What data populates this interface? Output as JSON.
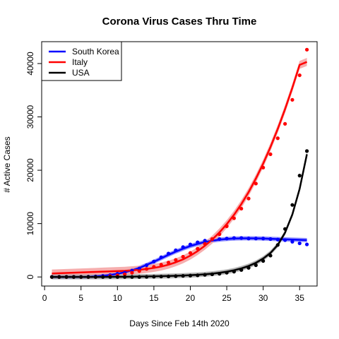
{
  "chart_data": {
    "type": "line",
    "title": "Corona Virus Cases Thru Time",
    "xlabel": "Days Since Feb 14th 2020",
    "ylabel": "# Active Cases",
    "xlim": [
      -0.4,
      37.4
    ],
    "ylim": [
      -1700,
      44100
    ],
    "x_ticks": [
      0,
      5,
      10,
      15,
      20,
      25,
      30,
      35
    ],
    "y_ticks": [
      0,
      10000,
      20000,
      30000,
      40000
    ],
    "x_tick_labels": [
      "0",
      "5",
      "10",
      "15",
      "20",
      "25",
      "30",
      "35"
    ],
    "y_tick_labels": [
      "0",
      "10000",
      "20000",
      "30000",
      "40000"
    ],
    "grid": false,
    "legend_position": "top-left",
    "series": [
      {
        "name": "South Korea",
        "color": "#0000ff",
        "band_color": "#7f7fff",
        "x": [
          1,
          2,
          3,
          4,
          5,
          6,
          7,
          8,
          9,
          10,
          11,
          12,
          13,
          14,
          15,
          16,
          17,
          18,
          19,
          20,
          21,
          22,
          23,
          24,
          25,
          26,
          27,
          28,
          29,
          30,
          31,
          32,
          33,
          34,
          35,
          36
        ],
        "values": [
          20,
          20,
          20,
          20,
          30,
          50,
          100,
          200,
          350,
          600,
          800,
          1200,
          1600,
          2200,
          2900,
          3700,
          4400,
          5000,
          5600,
          6100,
          6500,
          6800,
          7000,
          7100,
          7200,
          7300,
          7300,
          7200,
          7200,
          7200,
          7100,
          7000,
          6900,
          6600,
          6300,
          6100
        ],
        "fit": [
          0,
          0,
          0,
          0,
          0,
          0,
          120,
          220,
          380,
          600,
          880,
          1250,
          1700,
          2250,
          2850,
          3500,
          4150,
          4750,
          5300,
          5800,
          6200,
          6550,
          6800,
          7000,
          7120,
          7200,
          7240,
          7250,
          7230,
          7200,
          7150,
          7100,
          7050,
          7000,
          6950,
          6900
        ],
        "band": 400
      },
      {
        "name": "Italy",
        "color": "#ff0000",
        "band_color": "#f4a0a0",
        "x": [
          1,
          2,
          3,
          4,
          5,
          6,
          7,
          8,
          9,
          10,
          11,
          12,
          13,
          14,
          15,
          16,
          17,
          18,
          19,
          20,
          21,
          22,
          23,
          24,
          25,
          26,
          27,
          28,
          29,
          30,
          31,
          32,
          33,
          34,
          35,
          36
        ],
        "values": [
          0,
          0,
          0,
          0,
          0,
          0,
          0,
          20,
          150,
          300,
          500,
          800,
          1100,
          1500,
          1900,
          2300,
          2700,
          3200,
          3800,
          4500,
          5300,
          6200,
          7100,
          8000,
          9500,
          11000,
          12800,
          14700,
          17500,
          20500,
          23000,
          26000,
          28700,
          33200,
          37800,
          42600
        ],
        "fit": [
          650,
          700,
          750,
          800,
          850,
          900,
          950,
          1000,
          1050,
          1100,
          1150,
          1250,
          1350,
          1500,
          1700,
          1950,
          2300,
          2750,
          3300,
          4000,
          4850,
          5850,
          7000,
          8350,
          9900,
          11650,
          13650,
          15900,
          18450,
          21250,
          24350,
          27750,
          31450,
          35450,
          39750,
          40300
        ],
        "band": 750
      },
      {
        "name": "USA",
        "color": "#000000",
        "band_color": "#a6a6a6",
        "x": [
          1,
          2,
          3,
          4,
          5,
          6,
          7,
          8,
          9,
          10,
          11,
          12,
          13,
          14,
          15,
          16,
          17,
          18,
          19,
          20,
          21,
          22,
          23,
          24,
          25,
          26,
          27,
          28,
          29,
          30,
          31,
          32,
          33,
          34,
          35,
          36
        ],
        "values": [
          0,
          0,
          0,
          0,
          0,
          0,
          0,
          0,
          0,
          0,
          0,
          0,
          0,
          20,
          50,
          80,
          100,
          150,
          200,
          250,
          300,
          400,
          500,
          600,
          800,
          1000,
          1300,
          1700,
          2200,
          3000,
          4000,
          6000,
          9000,
          13500,
          19000,
          23600
        ],
        "fit": [
          0,
          0,
          0,
          0,
          0,
          0,
          0,
          10,
          20,
          30,
          40,
          60,
          80,
          100,
          120,
          150,
          180,
          220,
          270,
          330,
          400,
          500,
          620,
          780,
          980,
          1250,
          1600,
          2050,
          2650,
          3450,
          4500,
          6000,
          8300,
          11700,
          16500,
          23000
        ],
        "band": 450
      }
    ]
  }
}
